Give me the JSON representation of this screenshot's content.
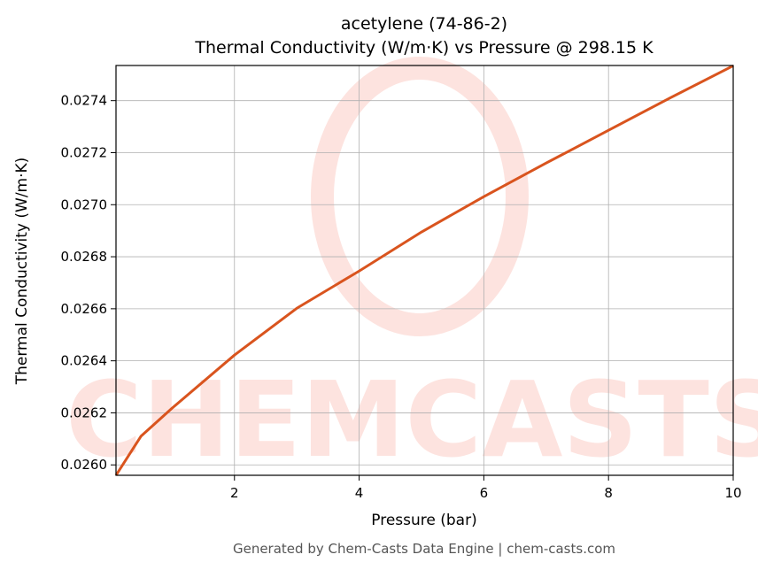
{
  "chart_data": {
    "type": "line",
    "title": "acetylene (74-86-2)",
    "subtitle": "Thermal Conductivity (W/m·K) vs Pressure @ 298.15 K",
    "x_label": "Pressure (bar)",
    "y_label": "Thermal Conductivity (W/m·K)",
    "footer": "Generated by Chem-Casts Data Engine | chem-casts.com",
    "watermark": "CHEMCASTS",
    "x": [
      0.1,
      0.5,
      1,
      2,
      3,
      4,
      5,
      6,
      7,
      8,
      9,
      10
    ],
    "series": [
      {
        "name": "Thermal Conductivity",
        "color": "#d9541e",
        "values": [
          0.02596,
          0.02611,
          0.026218,
          0.026422,
          0.026602,
          0.026745,
          0.026895,
          0.027031,
          0.02716,
          0.027286,
          0.027412,
          0.027534
        ]
      }
    ],
    "xlim": [
      0.1,
      10
    ],
    "ylim": [
      0.02596,
      0.027535
    ],
    "xticks": [
      2,
      4,
      6,
      8,
      10
    ],
    "yticks": [
      {
        "value": 0.026,
        "label": "0.0260"
      },
      0.0262,
      0.0264,
      0.0266,
      0.0268,
      {
        "value": 0.027,
        "label": "0.0270"
      },
      0.0272,
      0.0274
    ],
    "grid": true
  }
}
